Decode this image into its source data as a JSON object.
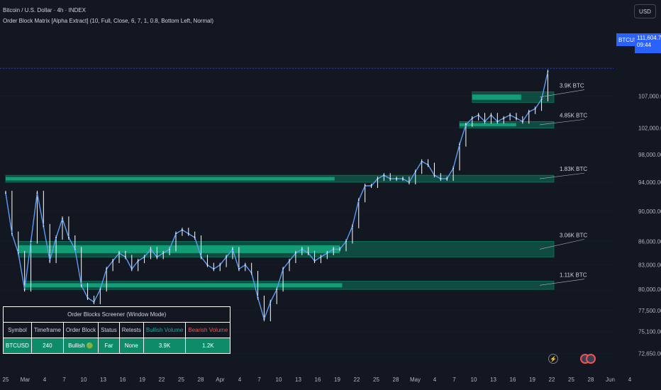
{
  "header": {
    "title": "Bitcoin / U.S. Dollar · 4h · INDEX",
    "indicator": "Order Block Matrix [Alpha Extract] (10, Full, Close, 6, 7, 1, 0.8, Bottom Left, Normal)"
  },
  "currency_button": "USD",
  "price_tag": {
    "symbol": "BTCUSD",
    "price": "111,604.70",
    "countdown": "09:44"
  },
  "colors": {
    "background": "#131722",
    "candle": "#ffffff",
    "line": "#5b9cf6",
    "order_block": "#0e8c6a",
    "order_block_strong": "#14b88a",
    "bearish": "#ef5350"
  },
  "screener": {
    "title": "Order Blocks Screener (Window Mode)",
    "headers": [
      "Symbol",
      "Timeframe",
      "Order Block",
      "Status",
      "Retests",
      "Bullish Volume",
      "Bearish Volume"
    ],
    "row": [
      "BTCUSD",
      "240",
      "Bullish 🟢",
      "Far",
      "None",
      "3.9K",
      "1.2K"
    ]
  },
  "bottom_icons": [
    "bolt-icon",
    "flag-icon",
    "flag-icon"
  ],
  "chart_data": {
    "type": "line",
    "yscale": "log",
    "ylim": [
      71000,
      118500
    ],
    "y_ticks": [
      "107,000.00",
      "102,000.00",
      "98,000.00",
      "94,000.00",
      "90,000.00",
      "86,000.00",
      "83,000.00",
      "80,000.00",
      "77,500.00",
      "75,100.00",
      "72,650.00"
    ],
    "x_ticks": [
      "25",
      "Mar",
      "4",
      "7",
      "10",
      "13",
      "16",
      "19",
      "22",
      "25",
      "28",
      "Apr",
      "4",
      "7",
      "10",
      "13",
      "16",
      "19",
      "22",
      "25",
      "28",
      "May",
      "4",
      "7",
      "10",
      "13",
      "16",
      "19",
      "22",
      "25",
      "28",
      "Jun",
      "4"
    ],
    "x_range": [
      "2025-02-25",
      "2025-06-04"
    ],
    "last_price": 111604.7,
    "series": [
      {
        "x": [
          "2025-02-25",
          "2025-02-26",
          "2025-02-27",
          "2025-02-28",
          "2025-03-01",
          "2025-03-02",
          "2025-03-03",
          "2025-03-04",
          "2025-03-05",
          "2025-03-06",
          "2025-03-07",
          "2025-03-08",
          "2025-03-09",
          "2025-03-10",
          "2025-03-11",
          "2025-03-12",
          "2025-03-13",
          "2025-03-14",
          "2025-03-15",
          "2025-03-16",
          "2025-03-17",
          "2025-03-18",
          "2025-03-19",
          "2025-03-20",
          "2025-03-21",
          "2025-03-22",
          "2025-03-23",
          "2025-03-24",
          "2025-03-25",
          "2025-03-26",
          "2025-03-27",
          "2025-03-28",
          "2025-03-29",
          "2025-03-30",
          "2025-03-31",
          "2025-04-01",
          "2025-04-02",
          "2025-04-03",
          "2025-04-04",
          "2025-04-05",
          "2025-04-06",
          "2025-04-07",
          "2025-04-08",
          "2025-04-09",
          "2025-04-10",
          "2025-04-11",
          "2025-04-12",
          "2025-04-13",
          "2025-04-14",
          "2025-04-15",
          "2025-04-16",
          "2025-04-17",
          "2025-04-18",
          "2025-04-19",
          "2025-04-20",
          "2025-04-21",
          "2025-04-22",
          "2025-04-23",
          "2025-04-24",
          "2025-04-25",
          "2025-04-26",
          "2025-04-27",
          "2025-04-28",
          "2025-04-29",
          "2025-04-30",
          "2025-05-01",
          "2025-05-02",
          "2025-05-03",
          "2025-05-04",
          "2025-05-05",
          "2025-05-06",
          "2025-05-07",
          "2025-05-08",
          "2025-05-09",
          "2025-05-10",
          "2025-05-11",
          "2025-05-12",
          "2025-05-13",
          "2025-05-14",
          "2025-05-15",
          "2025-05-16",
          "2025-05-17",
          "2025-05-18",
          "2025-05-19",
          "2025-05-20",
          "2025-05-21",
          "2025-05-22"
        ],
        "values": [
          92500,
          87000,
          84500,
          80000,
          86000,
          92500,
          88000,
          83500,
          86500,
          89000,
          86500,
          85000,
          80500,
          79000,
          78500,
          80000,
          82500,
          83500,
          84500,
          84000,
          82500,
          83500,
          84000,
          85000,
          84000,
          84500,
          85000,
          87000,
          87500,
          87000,
          86500,
          84000,
          83000,
          82500,
          83000,
          84000,
          85000,
          82500,
          83000,
          82000,
          79000,
          76500,
          78500,
          80000,
          82500,
          83500,
          84500,
          85000,
          84500,
          83500,
          84000,
          84500,
          85000,
          85000,
          86000,
          88000,
          91500,
          93500,
          93500,
          94500,
          95000,
          94500,
          94500,
          94500,
          94000,
          95500,
          97000,
          96500,
          95000,
          94500,
          94500,
          96000,
          99500,
          102500,
          103500,
          104000,
          103000,
          104000,
          103000,
          103500,
          104000,
          103500,
          103000,
          104500,
          105000,
          106500,
          111000
        ]
      }
    ],
    "order_blocks": [
      {
        "label": "3.9K BTC",
        "bottom": 106000,
        "top": 107700
      },
      {
        "label": "4.85K BTC",
        "bottom": 102000,
        "top": 103000
      },
      {
        "label": "1.83K BTC",
        "bottom": 94000,
        "top": 95000
      },
      {
        "label": "3.06K BTC",
        "bottom": 84000,
        "top": 86000
      },
      {
        "label": "1.11K BTC",
        "bottom": 80000,
        "top": 81000
      }
    ]
  }
}
